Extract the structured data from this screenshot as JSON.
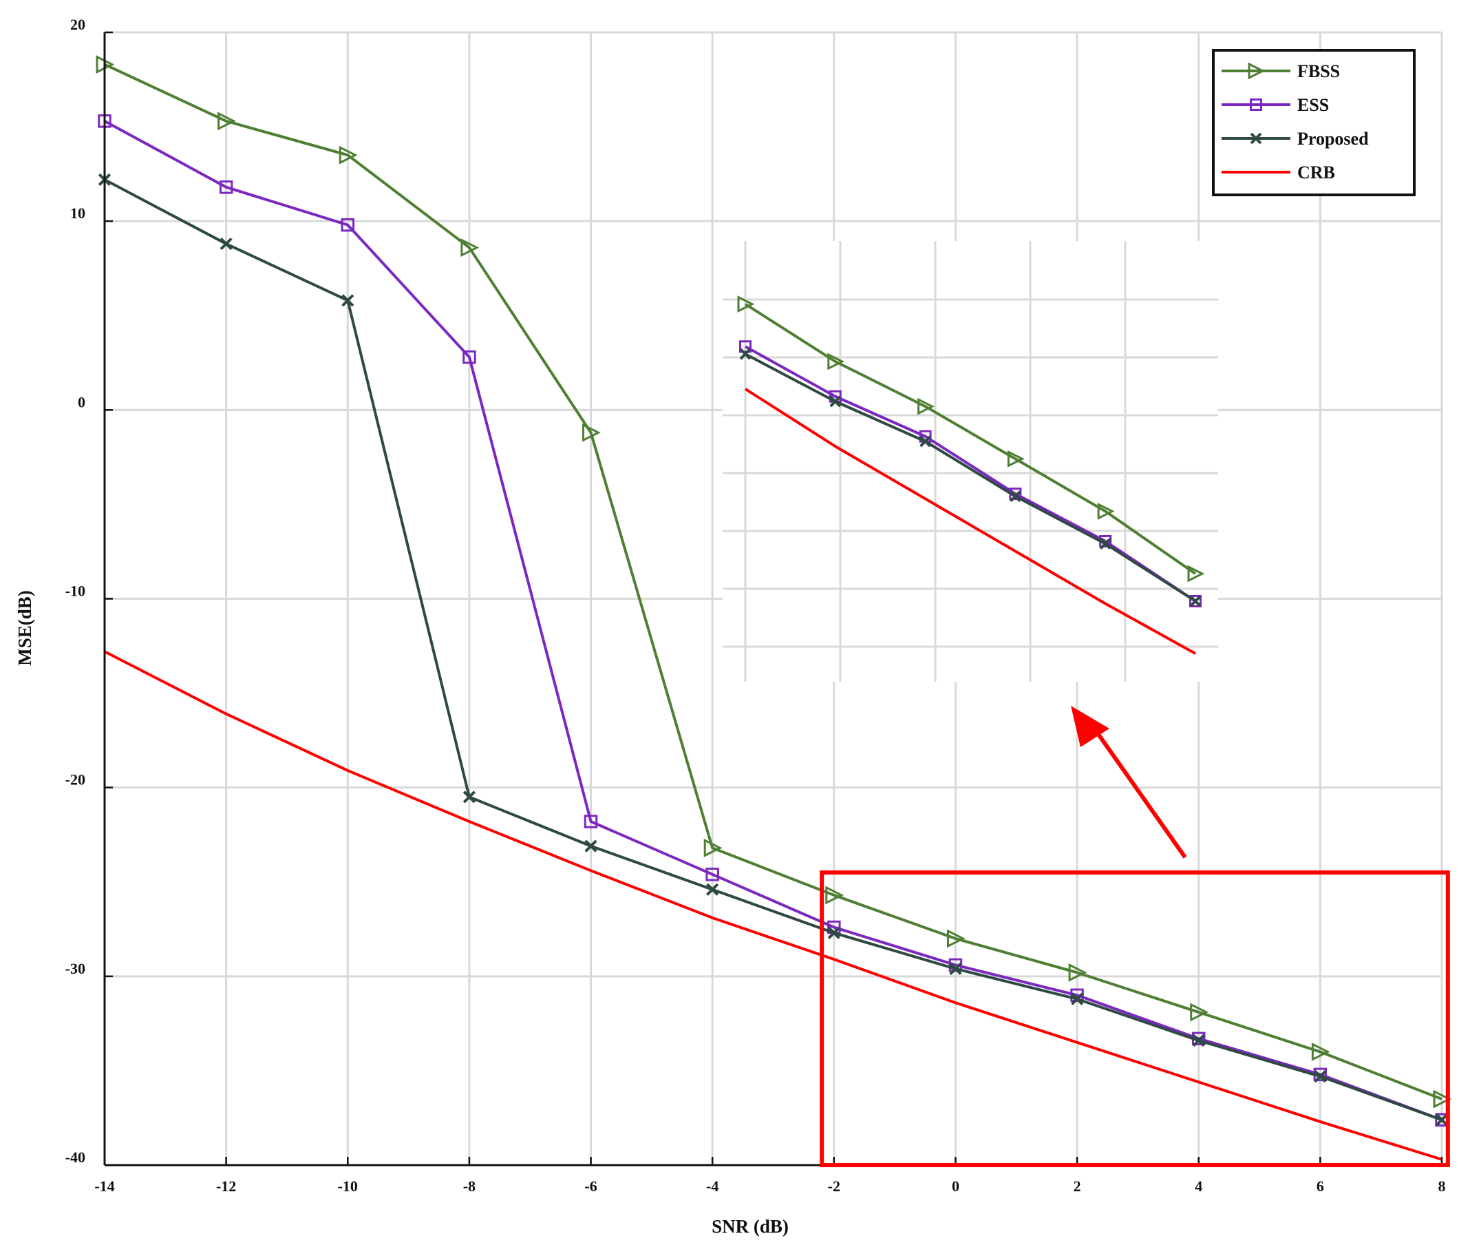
{
  "chart_data": {
    "type": "line",
    "title": "",
    "xlabel": "SNR (dB)",
    "ylabel": "MSE(dB)",
    "xlim": [
      -14,
      8
    ],
    "ylim": [
      -40,
      20
    ],
    "xticks": [
      -14,
      -12,
      -10,
      -8,
      -6,
      -4,
      -2,
      0,
      2,
      4,
      6,
      8
    ],
    "yticks": [
      20,
      10,
      0,
      -10,
      -20,
      -30,
      -40
    ],
    "grid": true,
    "legend_position": "top-right",
    "x": [
      -14,
      -12,
      -10,
      -8,
      -6,
      -4,
      -2,
      0,
      2,
      4,
      6,
      8
    ],
    "series": [
      {
        "name": "FBSS",
        "color": "#4e7f33",
        "marker": "triangle-right",
        "values": [
          18.3,
          15.3,
          13.5,
          8.6,
          -1.2,
          -23.2,
          -25.7,
          -28.0,
          -29.8,
          -31.9,
          -34.0,
          -36.5
        ]
      },
      {
        "name": "ESS",
        "color": "#7b28c0",
        "marker": "square",
        "values": [
          15.3,
          11.8,
          9.8,
          2.8,
          -21.8,
          -24.6,
          -27.4,
          -29.4,
          -31.0,
          -33.3,
          -35.2,
          -37.6
        ]
      },
      {
        "name": "Proposed",
        "color": "#2e4a43",
        "marker": "x",
        "values": [
          12.2,
          8.8,
          5.8,
          -20.5,
          -23.1,
          -25.4,
          -27.7,
          -29.6,
          -31.2,
          -33.4,
          -35.3,
          -37.6
        ]
      },
      {
        "name": "CRB",
        "color": "#ff0000",
        "marker": "none",
        "values": [
          -12.8,
          -16.1,
          -19.1,
          -21.8,
          -24.4,
          -26.9,
          -29.1,
          -31.4,
          -33.5,
          -35.6,
          -37.7,
          -39.7
        ]
      }
    ],
    "inset": {
      "x_range": [
        -2,
        8
      ],
      "y_range": [
        -40,
        -24
      ],
      "vertical_gridlines": 5,
      "horizontal_gridlines": 7
    },
    "highlight_box": {
      "x_range": [
        -2.2,
        8.1
      ],
      "y_range": [
        -40,
        -24.5
      ],
      "color": "#ff0000"
    }
  }
}
